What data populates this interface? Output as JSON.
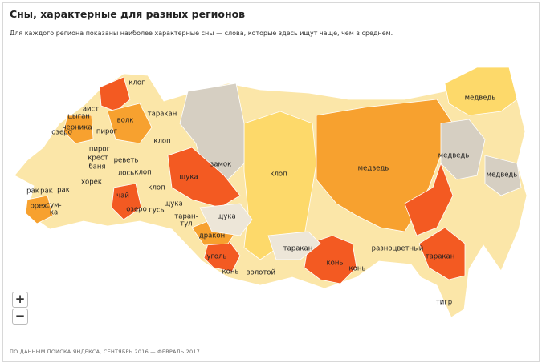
{
  "header": {
    "title": "Сны, характерные для разных регионов",
    "subtitle": "Для каждого региона показаны наиболее характерные сны — слова, которые здесь ищут чаще, чем в среднем."
  },
  "map": {
    "labels": [
      "клоп",
      "таракан",
      "медведь",
      "аист",
      "цыган",
      "волк",
      "черника",
      "озеро",
      "пирог",
      "клоп",
      "медведь",
      "пирог",
      "крест",
      "реветь",
      "баня",
      "замок",
      "медведь",
      "медведь",
      "лось",
      "клоп",
      "щука",
      "клоп",
      "хорек",
      "рак",
      "рак",
      "рак",
      "чай",
      "клоп",
      "озеро",
      "орех",
      [
        "сум-",
        "ка"
      ],
      "щука",
      "гусь",
      "щука",
      [
        "таран-",
        "тул"
      ],
      "дракон",
      "уголь",
      "таракан",
      "разноцветный",
      "конь",
      "таракан",
      "конь",
      "золотой",
      "конь",
      "тигр"
    ]
  },
  "controls": {
    "zoom_in": "+",
    "zoom_out": "−"
  },
  "footer": "ПО ДАННЫМ ПОИСКА ЯНДЕКСА, СЕНТЯБРЬ 2016 — ФЕВРАЛЬ 2017"
}
